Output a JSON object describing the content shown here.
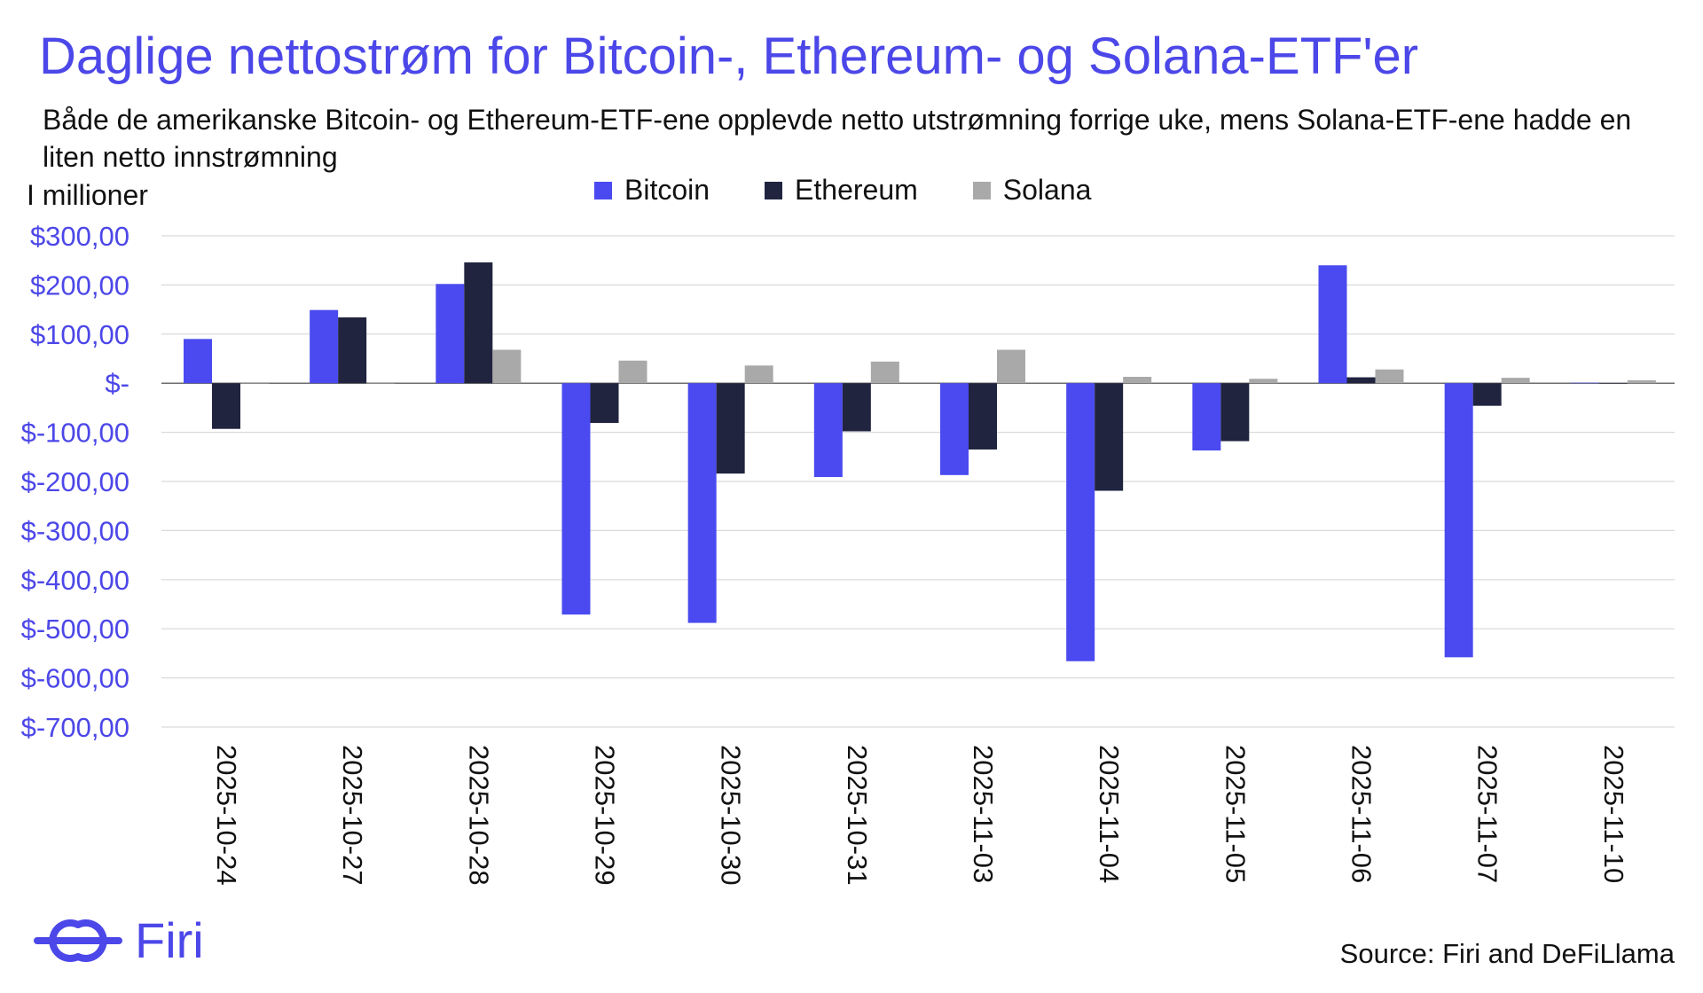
{
  "title": "Daglige nettostrøm for Bitcoin-, Ethereum- og Solana-ETF'er",
  "subtitle": "Både de amerikanske Bitcoin- og Ethereum-ETF-ene opplevde netto utstrømning forrige uke, mens Solana-ETF-ene hadde en liten netto innstrømning",
  "unit_label": "I millioner",
  "brand": {
    "name": "Firi",
    "color": "#4c47e8"
  },
  "source": "Source: Firi and DeFiLlama",
  "chart_data": {
    "type": "bar",
    "title": "Daglige nettostrøm for Bitcoin-, Ethereum- og Solana-ETF'er",
    "ylabel": "I millioner",
    "ylim": [
      -700,
      300
    ],
    "yticks": [
      300,
      200,
      100,
      0,
      -100,
      -200,
      -300,
      -400,
      -500,
      -600,
      -700
    ],
    "ytick_labels": [
      "$300,00",
      "$200,00",
      "$100,00",
      "$-",
      "$-100,00",
      "$-200,00",
      "$-300,00",
      "$-400,00",
      "$-500,00",
      "$-600,00",
      "$-700,00"
    ],
    "grid": true,
    "legend_position": "top-center",
    "categories": [
      "2025-10-24",
      "2025-10-27",
      "2025-10-28",
      "2025-10-29",
      "2025-10-30",
      "2025-10-31",
      "2025-11-03",
      "2025-11-04",
      "2025-11-05",
      "2025-11-06",
      "2025-11-07",
      "2025-11-10"
    ],
    "series": [
      {
        "name": "Bitcoin",
        "color": "#4a4af0",
        "values": [
          90,
          149,
          202,
          -471,
          -488,
          -191,
          -187,
          -566,
          -137,
          240,
          -558,
          1
        ]
      },
      {
        "name": "Ethereum",
        "color": "#21243f",
        "values": [
          -93,
          134,
          246,
          -81,
          -184,
          -98,
          -135,
          -219,
          -118,
          12,
          -46,
          0
        ]
      },
      {
        "name": "Solana",
        "color": "#a9a9a9",
        "values": [
          0,
          0,
          68,
          46,
          36,
          44,
          68,
          13,
          9,
          28,
          11,
          6
        ]
      }
    ]
  }
}
